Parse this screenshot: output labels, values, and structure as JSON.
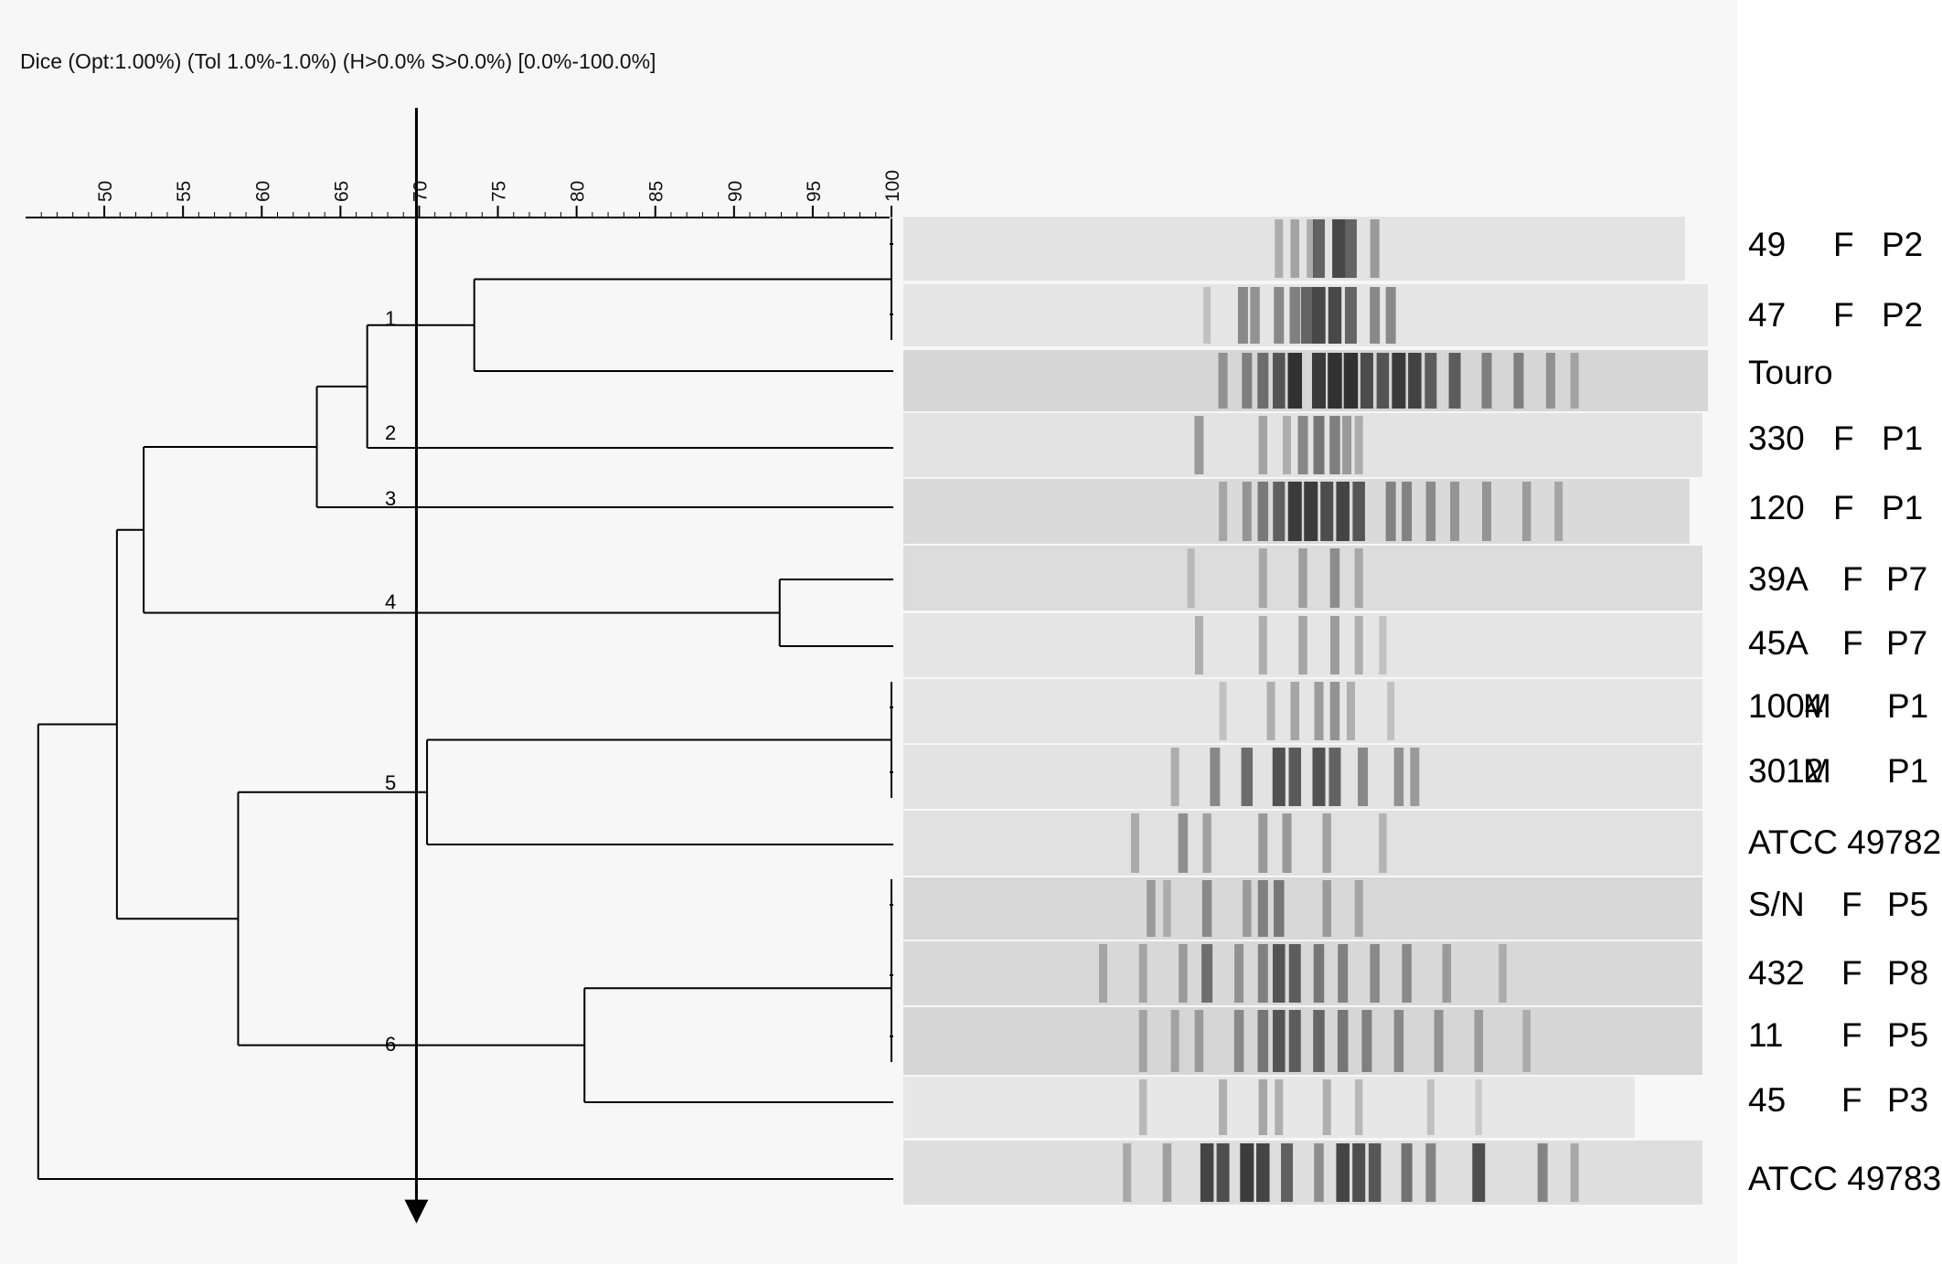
{
  "header": {
    "title": "Dice (Opt:1.00%) (Tol 1.0%-1.0%) (H>0.0% S>0.0%) [0.0%-100.0%]"
  },
  "scale": {
    "min": 45,
    "max": 100,
    "label_values": [
      50,
      55,
      60,
      65,
      70,
      75,
      80,
      85,
      90,
      95,
      100
    ],
    "cutoff_value": 70
  },
  "colors": {
    "panel": "#f7f7f7",
    "line": "#000000",
    "gel_light": "#eaeaea",
    "band_dark": "#1a1a1a"
  },
  "samples": [
    {
      "id": "49",
      "sex": "F",
      "group": "P2",
      "bg": 0.1,
      "bands": [
        [
          47,
          0.3
        ],
        [
          49,
          0.35
        ],
        [
          51,
          0.3
        ],
        [
          52,
          0.7
        ],
        [
          54.5,
          0.85
        ],
        [
          56,
          0.7
        ],
        [
          59,
          0.4
        ]
      ]
    },
    {
      "id": "47",
      "sex": "F",
      "group": "P2",
      "bg": 0.08,
      "bands": [
        [
          38,
          0.2
        ],
        [
          42.5,
          0.5
        ],
        [
          44,
          0.45
        ],
        [
          47,
          0.5
        ],
        [
          49,
          0.55
        ],
        [
          50.5,
          0.7
        ],
        [
          52,
          0.85
        ],
        [
          54,
          0.85
        ],
        [
          56,
          0.7
        ],
        [
          59,
          0.5
        ],
        [
          61,
          0.5
        ]
      ]
    },
    {
      "id": "Touro",
      "sex": "",
      "group": "",
      "bg": 0.25,
      "bands": [
        [
          40,
          0.4
        ],
        [
          43,
          0.5
        ],
        [
          45,
          0.6
        ],
        [
          47,
          0.75
        ],
        [
          49,
          0.95
        ],
        [
          52,
          0.9
        ],
        [
          54,
          0.95
        ],
        [
          56,
          0.95
        ],
        [
          58,
          0.8
        ],
        [
          60,
          0.75
        ],
        [
          62,
          0.9
        ],
        [
          64,
          0.85
        ],
        [
          66,
          0.7
        ],
        [
          69,
          0.7
        ],
        [
          73,
          0.5
        ],
        [
          77,
          0.5
        ],
        [
          81,
          0.4
        ],
        [
          84,
          0.3
        ]
      ]
    },
    {
      "id": "330",
      "sex": "F",
      "group": "P1",
      "bg": 0.1,
      "bands": [
        [
          37,
          0.4
        ],
        [
          45,
          0.35
        ],
        [
          48,
          0.3
        ],
        [
          50,
          0.5
        ],
        [
          52,
          0.6
        ],
        [
          54,
          0.55
        ],
        [
          55.5,
          0.4
        ],
        [
          57,
          0.3
        ]
      ]
    },
    {
      "id": "120",
      "sex": "F",
      "group": "P1",
      "bg": 0.2,
      "bands": [
        [
          40,
          0.3
        ],
        [
          43,
          0.4
        ],
        [
          45,
          0.55
        ],
        [
          47,
          0.7
        ],
        [
          49,
          0.9
        ],
        [
          51,
          0.9
        ],
        [
          53,
          0.8
        ],
        [
          55,
          0.85
        ],
        [
          57,
          0.75
        ],
        [
          61,
          0.5
        ],
        [
          63,
          0.5
        ],
        [
          66,
          0.45
        ],
        [
          69,
          0.4
        ],
        [
          73,
          0.4
        ],
        [
          78,
          0.35
        ],
        [
          82,
          0.3
        ]
      ]
    },
    {
      "id": "39A",
      "sex": "F",
      "group": "P7",
      "bg": 0.18,
      "bands": [
        [
          36,
          0.2
        ],
        [
          45,
          0.3
        ],
        [
          50,
          0.35
        ],
        [
          54,
          0.45
        ],
        [
          57,
          0.3
        ]
      ]
    },
    {
      "id": "45A",
      "sex": "F",
      "group": "P7",
      "bg": 0.08,
      "bands": [
        [
          37,
          0.3
        ],
        [
          45,
          0.3
        ],
        [
          50,
          0.35
        ],
        [
          54,
          0.4
        ],
        [
          57,
          0.3
        ],
        [
          60,
          0.2
        ]
      ]
    },
    {
      "id": "1004",
      "sex": "M",
      "group": "P1",
      "bg": 0.08,
      "bands": [
        [
          40,
          0.2
        ],
        [
          46,
          0.3
        ],
        [
          49,
          0.35
        ],
        [
          52,
          0.4
        ],
        [
          54,
          0.45
        ],
        [
          56,
          0.3
        ],
        [
          61,
          0.2
        ]
      ]
    },
    {
      "id": "3012",
      "sex": "M",
      "group": "P1",
      "bg": 0.1,
      "bands": [
        [
          34,
          0.3
        ],
        [
          39,
          0.5
        ],
        [
          43,
          0.65
        ],
        [
          47,
          0.8
        ],
        [
          49,
          0.75
        ],
        [
          52,
          0.8
        ],
        [
          54,
          0.7
        ],
        [
          57.5,
          0.5
        ],
        [
          62,
          0.45
        ],
        [
          64,
          0.4
        ]
      ]
    },
    {
      "id": "ATCC 49782",
      "sex": "",
      "group": "",
      "bg": 0.12,
      "bands": [
        [
          29,
          0.3
        ],
        [
          35,
          0.45
        ],
        [
          38,
          0.35
        ],
        [
          45,
          0.4
        ],
        [
          48,
          0.4
        ],
        [
          53,
          0.35
        ],
        [
          60,
          0.25
        ]
      ]
    },
    {
      "id": "S/N",
      "sex": "F",
      "group": "P5",
      "bg": 0.22,
      "bands": [
        [
          31,
          0.35
        ],
        [
          33,
          0.25
        ],
        [
          38,
          0.45
        ],
        [
          43,
          0.35
        ],
        [
          45,
          0.5
        ],
        [
          47,
          0.55
        ],
        [
          53,
          0.35
        ],
        [
          57,
          0.3
        ]
      ]
    },
    {
      "id": "432",
      "sex": "F",
      "group": "P8",
      "bg": 0.22,
      "bands": [
        [
          25,
          0.3
        ],
        [
          30,
          0.3
        ],
        [
          35,
          0.35
        ],
        [
          38,
          0.6
        ],
        [
          42,
          0.4
        ],
        [
          45,
          0.5
        ],
        [
          47,
          0.75
        ],
        [
          49,
          0.7
        ],
        [
          52,
          0.55
        ],
        [
          55,
          0.5
        ],
        [
          59,
          0.45
        ],
        [
          63,
          0.45
        ],
        [
          68,
          0.35
        ],
        [
          75,
          0.25
        ]
      ]
    },
    {
      "id": "11",
      "sex": "F",
      "group": "P5",
      "bg": 0.24,
      "bands": [
        [
          30,
          0.3
        ],
        [
          34,
          0.3
        ],
        [
          37,
          0.35
        ],
        [
          42,
          0.45
        ],
        [
          45,
          0.55
        ],
        [
          47,
          0.75
        ],
        [
          49,
          0.7
        ],
        [
          52,
          0.65
        ],
        [
          55,
          0.55
        ],
        [
          58,
          0.5
        ],
        [
          62,
          0.45
        ],
        [
          67,
          0.4
        ],
        [
          72,
          0.35
        ],
        [
          78,
          0.25
        ]
      ]
    },
    {
      "id": "45",
      "sex": "F",
      "group": "P3",
      "bg": 0.06,
      "bands": [
        [
          30,
          0.25
        ],
        [
          40,
          0.3
        ],
        [
          45,
          0.35
        ],
        [
          47,
          0.3
        ],
        [
          53,
          0.3
        ],
        [
          57,
          0.25
        ],
        [
          66,
          0.2
        ],
        [
          72,
          0.15
        ]
      ]
    },
    {
      "id": "ATCC 49783",
      "sex": "",
      "group": "",
      "bg": 0.16,
      "bands": [
        [
          28,
          0.3
        ],
        [
          33,
          0.35
        ],
        [
          38,
          0.85
        ],
        [
          40,
          0.8
        ],
        [
          43,
          0.9
        ],
        [
          45,
          0.85
        ],
        [
          48,
          0.7
        ],
        [
          52,
          0.45
        ],
        [
          55,
          0.85
        ],
        [
          57,
          0.8
        ],
        [
          59,
          0.75
        ],
        [
          63,
          0.6
        ],
        [
          66,
          0.5
        ],
        [
          72,
          0.8
        ],
        [
          80,
          0.5
        ],
        [
          84,
          0.3
        ]
      ]
    }
  ],
  "clusters": [
    {
      "label": "1",
      "similarity": 66.7
    },
    {
      "label": "2",
      "similarity": 63.5
    },
    {
      "label": "3",
      "similarity": 52.5
    },
    {
      "label": "4",
      "similarity": 50.8
    },
    {
      "label": "5",
      "similarity": 70.5
    },
    {
      "label": "6",
      "similarity": 58.5
    }
  ],
  "dendrogram": {
    "root_similarity": 45.8,
    "merges": [
      {
        "a": 0,
        "b": 1,
        "similarity": 100
      },
      {
        "a": 15,
        "b": 2,
        "similarity": 73.5
      },
      {
        "a": 16,
        "b": 3,
        "similarity": 66.7
      },
      {
        "a": 17,
        "b": 4,
        "similarity": 63.5
      },
      {
        "a": 5,
        "b": 6,
        "similarity": 92.9
      },
      {
        "a": 18,
        "b": 19,
        "similarity": 52.5
      },
      {
        "a": 7,
        "b": 8,
        "similarity": 100
      },
      {
        "a": 21,
        "b": 9,
        "similarity": 70.5
      },
      {
        "a": 10,
        "b": 11,
        "similarity": 100
      },
      {
        "a": 23,
        "b": 12,
        "similarity": 100
      },
      {
        "a": 24,
        "b": 13,
        "similarity": 80.5
      },
      {
        "a": 22,
        "b": 25,
        "similarity": 58.5
      },
      {
        "a": 20,
        "b": 26,
        "similarity": 50.8
      },
      {
        "a": 27,
        "b": 14,
        "similarity": 45.8
      }
    ]
  }
}
